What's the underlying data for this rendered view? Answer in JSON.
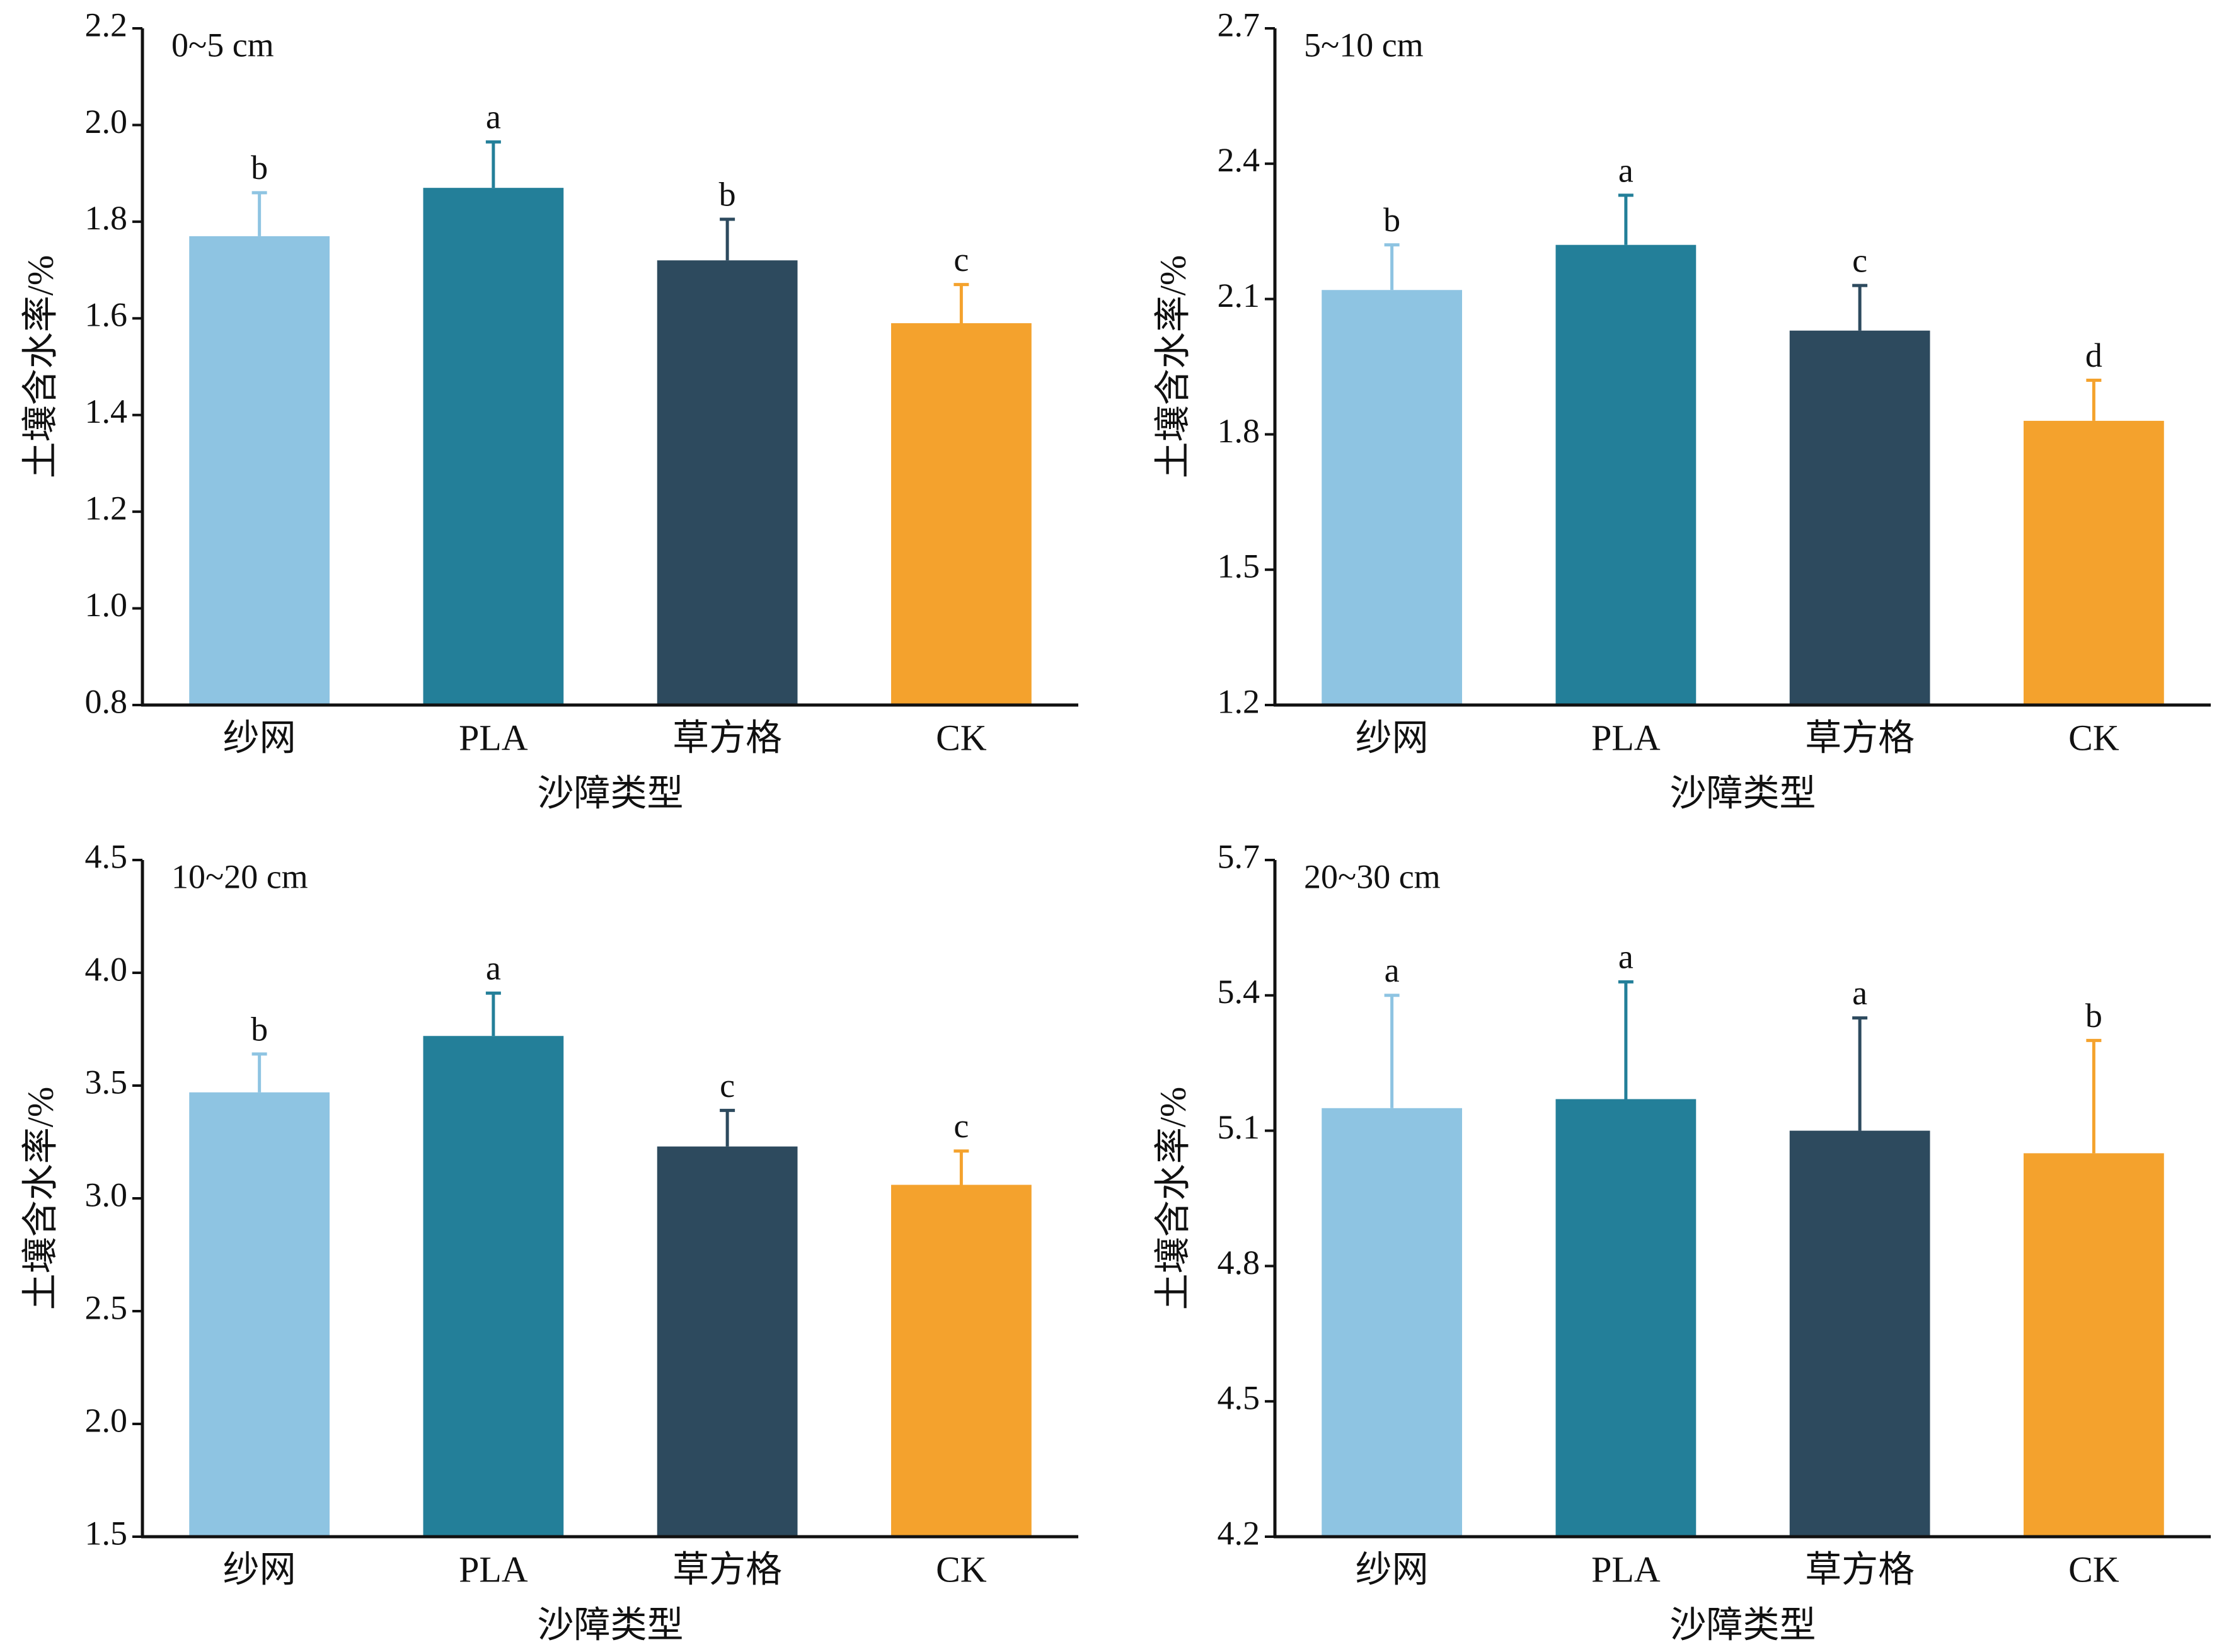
{
  "chart_data": [
    {
      "type": "bar",
      "annotation": "0~5 cm",
      "x_label": "沙障类型",
      "y_label": "土壤含水率/%",
      "categories": [
        "纱网",
        "PLA",
        "草方格",
        "CK"
      ],
      "values": [
        1.77,
        1.87,
        1.72,
        1.59
      ],
      "errors": [
        0.09,
        0.095,
        0.085,
        0.08
      ],
      "letters": [
        "b",
        "a",
        "b",
        "c"
      ],
      "colors": [
        "#8ec4e2",
        "#237f99",
        "#2d4a5e",
        "#f4a22d"
      ],
      "ylim": [
        0.8,
        2.2
      ],
      "yticks": [
        0.8,
        {
          "value": 1,
          "label": "1.0"
        },
        1.2,
        1.4,
        1.6,
        1.8,
        {
          "value": 2,
          "label": "2.0"
        },
        2.2
      ]
    },
    {
      "type": "bar",
      "annotation": "5~10 cm",
      "x_label": "沙障类型",
      "y_label": "土壤含水率/%",
      "categories": [
        "纱网",
        "PLA",
        "草方格",
        "CK"
      ],
      "values": [
        2.12,
        2.22,
        2.03,
        1.83
      ],
      "errors": [
        0.1,
        0.11,
        0.1,
        0.09
      ],
      "letters": [
        "b",
        "a",
        "c",
        "d"
      ],
      "colors": [
        "#8ec4e2",
        "#237f99",
        "#2d4a5e",
        "#f4a22d"
      ],
      "ylim": [
        1.2,
        2.7
      ],
      "yticks": [
        1.2,
        1.5,
        1.8,
        2.1,
        2.4,
        2.7
      ]
    },
    {
      "type": "bar",
      "annotation": "10~20 cm",
      "x_label": "沙障类型",
      "y_label": "土壤含水率/%",
      "categories": [
        "纱网",
        "PLA",
        "草方格",
        "CK"
      ],
      "values": [
        3.47,
        3.72,
        3.23,
        3.06
      ],
      "errors": [
        0.17,
        0.19,
        0.16,
        0.15
      ],
      "letters": [
        "b",
        "a",
        "c",
        "c"
      ],
      "colors": [
        "#8ec4e2",
        "#237f99",
        "#2d4a5e",
        "#f4a22d"
      ],
      "ylim": [
        1.5,
        4.5
      ],
      "yticks": [
        1.5,
        {
          "value": 2,
          "label": "2.0"
        },
        2.5,
        {
          "value": 3,
          "label": "3.0"
        },
        3.5,
        {
          "value": 4,
          "label": "4.0"
        },
        4.5
      ]
    },
    {
      "type": "bar",
      "annotation": "20~30 cm",
      "x_label": "沙障类型",
      "y_label": "土壤含水率/%",
      "categories": [
        "纱网",
        "PLA",
        "草方格",
        "CK"
      ],
      "values": [
        5.15,
        5.17,
        5.1,
        5.05
      ],
      "errors": [
        0.25,
        0.26,
        0.25,
        0.25
      ],
      "letters": [
        "a",
        "a",
        "a",
        "b"
      ],
      "colors": [
        "#8ec4e2",
        "#237f99",
        "#2d4a5e",
        "#f4a22d"
      ],
      "ylim": [
        4.2,
        5.7
      ],
      "yticks": [
        4.2,
        4.5,
        4.8,
        5.1,
        5.4,
        5.7
      ]
    }
  ]
}
